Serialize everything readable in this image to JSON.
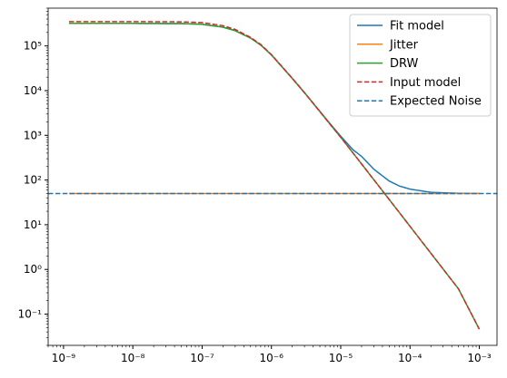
{
  "chart_data": {
    "type": "line",
    "title": "",
    "xlabel": "",
    "ylabel": "",
    "xscale": "log",
    "yscale": "log",
    "xlim": [
      6e-10,
      0.0018
    ],
    "ylim": [
      0.02,
      700000.0
    ],
    "grid": false,
    "legend_position": "upper-right",
    "x_ticks": [
      {
        "value": 1e-09,
        "label": "10⁻⁹"
      },
      {
        "value": 1e-08,
        "label": "10⁻⁸"
      },
      {
        "value": 1e-07,
        "label": "10⁻⁷"
      },
      {
        "value": 1e-06,
        "label": "10⁻⁶"
      },
      {
        "value": 1e-05,
        "label": "10⁻⁵"
      },
      {
        "value": 0.0001,
        "label": "10⁻⁴"
      },
      {
        "value": 0.001,
        "label": "10⁻³"
      }
    ],
    "y_ticks": [
      {
        "value": 0.1,
        "label": "10⁻¹"
      },
      {
        "value": 1,
        "label": "10⁰"
      },
      {
        "value": 10,
        "label": "10¹"
      },
      {
        "value": 100,
        "label": "10²"
      },
      {
        "value": 1000,
        "label": "10³"
      },
      {
        "value": 10000,
        "label": "10⁴"
      },
      {
        "value": 100000,
        "label": "10⁵"
      }
    ],
    "series": [
      {
        "name": "Fit model",
        "color": "#1f77b4",
        "style": "solid",
        "x": [
          1.2e-09,
          1e-08,
          5e-08,
          1e-07,
          2e-07,
          3e-07,
          5e-07,
          7e-07,
          1e-06,
          2e-06,
          3e-06,
          5e-06,
          7e-06,
          1e-05,
          1.5e-05,
          2e-05,
          3e-05,
          5e-05,
          7e-05,
          0.0001,
          0.0002,
          0.0005,
          0.001
        ],
        "y": [
          320000,
          319800,
          316000,
          305000,
          263000,
          220000,
          150000,
          105000,
          63000,
          18800,
          9000,
          3450,
          1830,
          956,
          477,
          338,
          175,
          95,
          73.6,
          62.6,
          53.1,
          50.5,
          50.1
        ]
      },
      {
        "name": "Jitter",
        "color": "#ff7f0e",
        "style": "solid",
        "x": [
          1.2e-09,
          0.001
        ],
        "y": [
          50,
          50
        ]
      },
      {
        "name": "DRW",
        "color": "#2ca02c",
        "style": "solid",
        "x": [
          1.2e-09,
          1e-08,
          5e-08,
          1e-07,
          2e-07,
          3e-07,
          5e-07,
          7e-07,
          1e-06,
          2e-06,
          3e-06,
          5e-06,
          7e-06,
          1e-05,
          2e-05,
          5e-05,
          0.0001,
          0.0002,
          0.0005,
          0.001
        ],
        "y": [
          320000,
          319800,
          316000,
          305000,
          263000,
          220000,
          150000,
          105000,
          63000,
          18800,
          9000,
          3400,
          1780,
          906,
          229,
          36.8,
          9.2,
          2.3,
          0.368,
          0.046
        ]
      },
      {
        "name": "Input model",
        "color": "#d62728",
        "style": "dashed",
        "x": [
          1.2e-09,
          1e-08,
          5e-08,
          1e-07,
          2e-07,
          3e-07,
          5e-07,
          7e-07,
          1e-06,
          2e-06,
          3e-06,
          5e-06,
          7e-06,
          1e-05,
          2e-05,
          5e-05,
          0.0001,
          0.0002,
          0.0005,
          0.001
        ],
        "y": [
          350000,
          349800,
          346000,
          333000,
          284000,
          234000,
          155000,
          108000,
          64000,
          18900,
          9000,
          3400,
          1780,
          906,
          229,
          36.8,
          9.2,
          2.3,
          0.368,
          0.046
        ]
      },
      {
        "name": "Expected Noise",
        "color": "#1f77b4",
        "style": "dashed",
        "x": [
          6e-10,
          0.0018
        ],
        "y": [
          50,
          50
        ]
      }
    ]
  }
}
